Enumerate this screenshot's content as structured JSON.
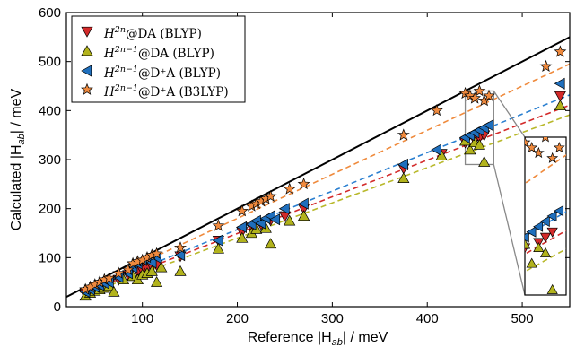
{
  "chart_data": {
    "type": "scatter",
    "xlabel": "Reference |H_ab| / meV",
    "ylabel": "Calculated |H_ab| / meV",
    "xlim": [
      20,
      550
    ],
    "ylim": [
      0,
      600
    ],
    "xticks": [
      100,
      200,
      300,
      400,
      500
    ],
    "yticks": [
      0,
      100,
      200,
      300,
      400,
      500,
      600
    ],
    "grid": false,
    "legend_position": "top-left",
    "diagonal": {
      "x": [
        20,
        550
      ],
      "y": [
        20,
        550
      ],
      "color": "#000000"
    },
    "inset": {
      "xlim": [
        440,
        470
      ],
      "ylim": [
        290,
        380
      ],
      "placement": "right"
    },
    "series": [
      {
        "name": "H^{2n}@DA (BLYP)",
        "marker": "triangle-down",
        "color": "#d32a2a",
        "fit": {
          "slope": 0.748,
          "intercept": -0.3,
          "color": "#d32a2a"
        },
        "x": [
          40,
          45,
          50,
          55,
          60,
          65,
          75,
          85,
          95,
          100,
          105,
          110,
          115,
          140,
          180,
          205,
          215,
          225,
          235,
          250,
          270,
          375,
          415,
          440,
          450,
          455,
          460,
          540
        ],
        "y": [
          28,
          33,
          36,
          40,
          44,
          48,
          55,
          65,
          72,
          74,
          80,
          82,
          85,
          103,
          135,
          153,
          162,
          168,
          176,
          185,
          200,
          282,
          312,
          335,
          340,
          345,
          350,
          430
        ]
      },
      {
        "name": "H^{2n-1}@DA (BLYP)",
        "marker": "triangle-up",
        "color": "#b2b31c",
        "fit": {
          "slope": 0.718,
          "intercept": -3.7,
          "color": "#b8b82a"
        },
        "x": [
          40,
          45,
          50,
          55,
          60,
          65,
          70,
          80,
          90,
          95,
          100,
          105,
          110,
          115,
          120,
          140,
          180,
          205,
          215,
          220,
          230,
          235,
          255,
          270,
          375,
          415,
          440,
          445,
          450,
          455,
          460,
          540
        ],
        "y": [
          22,
          28,
          32,
          35,
          38,
          42,
          30,
          55,
          62,
          55,
          65,
          68,
          72,
          50,
          80,
          72,
          118,
          140,
          150,
          158,
          160,
          128,
          175,
          185,
          262,
          308,
          338,
          320,
          335,
          330,
          295,
          410
        ]
      },
      {
        "name": "H^{2n-1}@D^+A (BLYP)",
        "marker": "triangle-left",
        "color": "#1f6fbd",
        "fit": {
          "slope": 0.785,
          "intercept": 0.3,
          "color": "#2a7fd0"
        },
        "x": [
          40,
          45,
          50,
          55,
          60,
          65,
          75,
          85,
          90,
          95,
          100,
          105,
          110,
          115,
          140,
          180,
          205,
          215,
          220,
          225,
          230,
          235,
          240,
          250,
          270,
          375,
          410,
          440,
          445,
          450,
          455,
          460,
          465,
          540
        ],
        "y": [
          30,
          35,
          40,
          44,
          48,
          50,
          60,
          68,
          80,
          88,
          95,
          100,
          90,
          100,
          105,
          135,
          162,
          168,
          175,
          170,
          180,
          185,
          178,
          200,
          210,
          290,
          320,
          345,
          350,
          355,
          360,
          365,
          370,
          455
        ]
      },
      {
        "name": "H^{2n-1}@D^+A (B3LYP)",
        "marker": "star",
        "color": "#f08a3e",
        "fit": {
          "slope": 0.9,
          "intercept": 0.0,
          "color": "#ef8a3c"
        },
        "x": [
          40,
          45,
          50,
          55,
          60,
          65,
          75,
          85,
          90,
          95,
          100,
          105,
          110,
          115,
          140,
          180,
          205,
          215,
          220,
          225,
          230,
          235,
          255,
          270,
          375,
          410,
          440,
          445,
          450,
          455,
          460,
          465,
          525,
          540
        ],
        "y": [
          35,
          40,
          45,
          50,
          55,
          58,
          68,
          75,
          88,
          92,
          95,
          100,
          105,
          108,
          120,
          165,
          195,
          205,
          210,
          215,
          220,
          225,
          240,
          250,
          350,
          400,
          435,
          430,
          425,
          440,
          420,
          430,
          490,
          520
        ]
      }
    ]
  },
  "legend": {
    "items": [
      {
        "base": "H",
        "sup": "2n",
        "sub": "",
        "suffix": "@DA (BLYP)"
      },
      {
        "base": "H",
        "sup": "2n−1",
        "sub": "",
        "suffix": "@DA (BLYP)"
      },
      {
        "base": "H",
        "sup": "2n−1",
        "sub": "",
        "suffix": "@D⁺A (BLYP)"
      },
      {
        "base": "H",
        "sup": "2n−1",
        "sub": "",
        "suffix": "@D⁺A (B3LYP)"
      }
    ]
  },
  "axes": {
    "x_title_pre": "Reference |H",
    "x_title_sub": "ab",
    "x_title_post": "| / meV",
    "y_title_pre": "Calculated |H",
    "y_title_sub": "ab",
    "y_title_post": "| / meV"
  }
}
